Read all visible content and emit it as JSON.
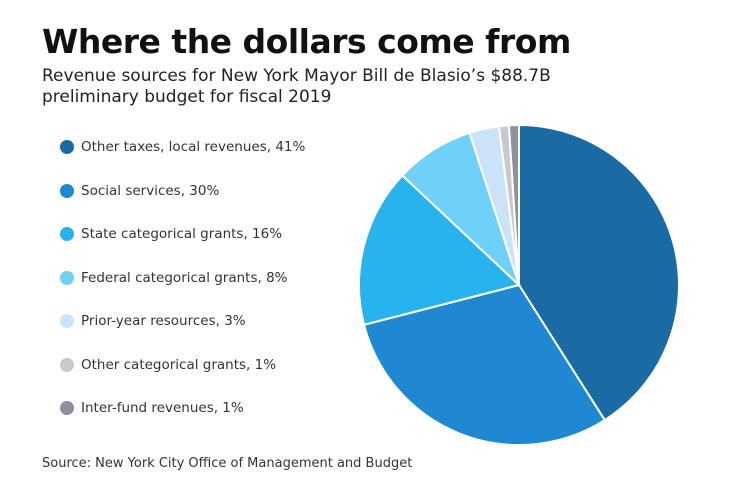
{
  "chart_data": {
    "type": "pie",
    "title": "Where the dollars come from",
    "subtitle": "Revenue sources for New York Mayor Bill de Blasio’s $88.7B preliminary budget for fiscal 2019",
    "source": "Source: New York City Office of Management and Budget",
    "legend_position": "left",
    "start": "12 o'clock, clockwise",
    "slices": [
      {
        "label": "Other taxes, local revenues, 41%",
        "value": 41,
        "color": "#1a6aa3"
      },
      {
        "label": "Social services, 30%",
        "value": 30,
        "color": "#1e88d2"
      },
      {
        "label": "State categorical grants, 16%",
        "value": 16,
        "color": "#27b4ee"
      },
      {
        "label": "Federal categorical grants, 8%",
        "value": 8,
        "color": "#6fd0fa"
      },
      {
        "label": "Prior-year resources, 3%",
        "value": 3,
        "color": "#cbe3f8"
      },
      {
        "label": "Other categorical grants, 1%",
        "value": 1,
        "color": "#c9c9cc"
      },
      {
        "label": "Inter-fund revenues, 1%",
        "value": 1,
        "color": "#8f8fa2"
      }
    ]
  }
}
